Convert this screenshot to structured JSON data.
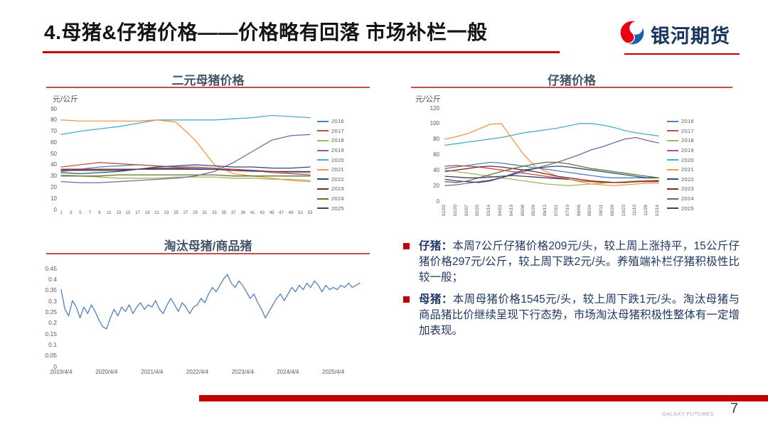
{
  "page": {
    "background": "#ffffff",
    "accent_red": "#c00000",
    "navy_text": "#203864",
    "chart_title_color": "#44546a"
  },
  "header": {
    "title": "4.母猪&仔猪价格——价格略有回落 市场补栏一般",
    "logo": {
      "text": "银河期货",
      "icon": "galaxy-swirl-icon",
      "icon_red": "#e60012",
      "icon_blue": "#1b5eab"
    }
  },
  "chart_data": [
    {
      "type": "line",
      "title": "二元母猪价格",
      "unit": "元/公斤",
      "ylim": [
        0,
        90
      ],
      "yticks": [
        "0",
        "10",
        "20",
        "30",
        "40",
        "50",
        "60",
        "70",
        "80",
        "90"
      ],
      "xticks": [
        "1",
        "3",
        "5",
        "7",
        "9",
        "11",
        "13",
        "15",
        "17",
        "19",
        "21",
        "23",
        "25",
        "27",
        "29",
        "31",
        "33",
        "35",
        "37",
        "39",
        "41",
        "43",
        "45",
        "47",
        "49",
        "51",
        "53"
      ],
      "series_x_weeks": [
        1,
        5,
        9,
        13,
        17,
        21,
        25,
        29,
        33,
        37,
        41,
        45,
        49,
        53
      ],
      "legend_position": "right",
      "series": [
        {
          "name": "2016",
          "color": "#4F81BD",
          "values": [
            34,
            36,
            38,
            39,
            40,
            39,
            38,
            37,
            36,
            35,
            34,
            34,
            33,
            33
          ]
        },
        {
          "name": "2017",
          "color": "#C0504D",
          "values": [
            38,
            40,
            42,
            41,
            40,
            39,
            38,
            38,
            37,
            36,
            35,
            33,
            32,
            31
          ]
        },
        {
          "name": "2018",
          "color": "#9BBB59",
          "values": [
            31,
            30,
            29,
            28,
            28,
            28,
            29,
            29,
            29,
            28,
            28,
            27,
            27,
            26
          ]
        },
        {
          "name": "2019",
          "color": "#8064A2",
          "values": [
            25,
            24,
            24,
            25,
            26,
            27,
            28,
            30,
            34,
            42,
            52,
            62,
            66,
            67
          ]
        },
        {
          "name": "2020",
          "color": "#4BACC6",
          "values": [
            67,
            70,
            72,
            74,
            77,
            80,
            80,
            80,
            80,
            81,
            82,
            84,
            83,
            82
          ]
        },
        {
          "name": "2021",
          "color": "#F79646",
          "values": [
            80,
            79,
            79,
            79,
            79,
            80,
            78,
            62,
            40,
            32,
            30,
            28,
            26,
            25
          ]
        },
        {
          "name": "2022",
          "color": "#2C4D75",
          "values": [
            33,
            32,
            33,
            34,
            36,
            38,
            39,
            40,
            39,
            38,
            38,
            37,
            37,
            38
          ]
        },
        {
          "name": "2023",
          "color": "#772C2A",
          "values": [
            36,
            36,
            36,
            36,
            36,
            37,
            37,
            36,
            36,
            35,
            35,
            34,
            34,
            34
          ]
        },
        {
          "name": "2024",
          "color": "#5F7530",
          "values": [
            30,
            30,
            30,
            31,
            31,
            31,
            31,
            31,
            31,
            30,
            30,
            30,
            30,
            30
          ]
        },
        {
          "name": "2025",
          "color": "#4D3B62",
          "values": [
            35,
            35,
            35,
            35,
            36,
            36,
            36,
            36,
            36,
            35,
            null,
            null,
            null,
            null
          ]
        }
      ]
    },
    {
      "type": "line",
      "title": "仔猪价格",
      "unit": "元/公斤",
      "ylim": [
        0,
        120
      ],
      "yticks": [
        "0",
        "20",
        "40",
        "60",
        "80",
        "100",
        "120"
      ],
      "xticks": [
        "01/02",
        "01/20",
        "02/07",
        "02/25",
        "03/14",
        "04/01",
        "04/19",
        "05/08",
        "05/26",
        "06/13",
        "07/01",
        "07/19",
        "08/06",
        "08/24",
        "09/11",
        "09/29",
        "10/23",
        "11/10",
        "11/28",
        "12/16"
      ],
      "rotate_xticks": true,
      "legend_position": "right",
      "series": [
        {
          "name": "2016",
          "color": "#4F81BD",
          "values": [
            42,
            44,
            46,
            48,
            50,
            49,
            47,
            45,
            43,
            41,
            39,
            37,
            35,
            33,
            31,
            30,
            30,
            30,
            30,
            30
          ]
        },
        {
          "name": "2017",
          "color": "#C0504D",
          "values": [
            45,
            46,
            45,
            44,
            42,
            40,
            38,
            36,
            34,
            32,
            30,
            28,
            26,
            25,
            24,
            24,
            24,
            25,
            25,
            25
          ]
        },
        {
          "name": "2018",
          "color": "#9BBB59",
          "values": [
            40,
            38,
            36,
            34,
            32,
            30,
            28,
            26,
            24,
            22,
            21,
            20,
            21,
            22,
            23,
            24,
            25,
            26,
            26,
            27
          ]
        },
        {
          "name": "2019",
          "color": "#8064A2",
          "values": [
            20,
            21,
            23,
            25,
            27,
            30,
            34,
            38,
            42,
            46,
            50,
            55,
            60,
            66,
            70,
            75,
            80,
            82,
            78,
            75
          ]
        },
        {
          "name": "2020",
          "color": "#4BACC6",
          "values": [
            72,
            74,
            76,
            78,
            80,
            82,
            85,
            88,
            90,
            92,
            94,
            97,
            100,
            100,
            98,
            95,
            91,
            88,
            86,
            84
          ]
        },
        {
          "name": "2021",
          "color": "#F79646",
          "values": [
            80,
            83,
            87,
            93,
            99,
            100,
            80,
            60,
            45,
            38,
            32,
            28,
            25,
            22,
            21,
            20,
            21,
            22,
            23,
            23
          ]
        },
        {
          "name": "2022",
          "color": "#2C4D75",
          "values": [
            28,
            26,
            25,
            24,
            26,
            30,
            35,
            40,
            42,
            44,
            45,
            44,
            42,
            40,
            38,
            36,
            34,
            32,
            30,
            30
          ]
        },
        {
          "name": "2023",
          "color": "#772C2A",
          "values": [
            38,
            40,
            42,
            44,
            45,
            44,
            42,
            40,
            38,
            35,
            32,
            30,
            28,
            26,
            25,
            24,
            24,
            25,
            26,
            26
          ]
        },
        {
          "name": "2024",
          "color": "#5F7530",
          "values": [
            25,
            24,
            26,
            30,
            34,
            38,
            42,
            45,
            48,
            50,
            50,
            48,
            45,
            42,
            40,
            38,
            36,
            34,
            32,
            30
          ]
        },
        {
          "name": "2025",
          "color": "#4D3B62",
          "values": [
            32,
            31,
            30,
            30,
            31,
            32,
            33,
            32,
            31,
            30,
            29,
            28,
            null,
            null,
            null,
            null,
            null,
            null,
            null,
            null
          ]
        }
      ]
    },
    {
      "type": "line",
      "title": "淘汰母猪/商品猪",
      "ylim": [
        0,
        0.45
      ],
      "yticks": [
        "0",
        "0.05",
        "0.1",
        "0.15",
        "0.2",
        "0.25",
        "0.3",
        "0.35",
        "0.4",
        "0.45"
      ],
      "xticks": [
        "2019/4/4",
        "2020/4/4",
        "2021/4/4",
        "2022/4/4",
        "2023/4/4",
        "2024/4/4",
        "2025/4/4"
      ],
      "xtick_positions": [
        0,
        0.152,
        0.304,
        0.456,
        0.608,
        0.759,
        0.911
      ],
      "series": [
        {
          "name": "淘汰母猪/商品猪",
          "color": "#4F81BD",
          "values": [
            0.35,
            0.26,
            0.23,
            0.3,
            0.27,
            0.22,
            0.27,
            0.24,
            0.28,
            0.25,
            0.21,
            0.18,
            0.17,
            0.22,
            0.26,
            0.23,
            0.27,
            0.25,
            0.28,
            0.24,
            0.27,
            0.29,
            0.26,
            0.28,
            0.27,
            0.3,
            0.26,
            0.24,
            0.28,
            0.31,
            0.28,
            0.25,
            0.29,
            0.27,
            0.24,
            0.27,
            0.28,
            0.31,
            0.29,
            0.33,
            0.36,
            0.34,
            0.37,
            0.4,
            0.42,
            0.38,
            0.36,
            0.39,
            0.37,
            0.34,
            0.31,
            0.33,
            0.29,
            0.26,
            0.22,
            0.25,
            0.28,
            0.31,
            0.33,
            0.3,
            0.33,
            0.36,
            0.34,
            0.37,
            0.35,
            0.38,
            0.36,
            0.39,
            0.37,
            0.34,
            0.37,
            0.35,
            0.36,
            0.35,
            0.37,
            0.36,
            0.38,
            0.36,
            0.37,
            0.38
          ]
        }
      ]
    }
  ],
  "notes": {
    "items": [
      {
        "label": "仔猪：",
        "text": "本周7公斤仔猪价格209元/头，较上周上涨持平，15公斤仔猪价格297元/公斤，较上周下跌2元/头。养殖端补栏仔猪积极性比较一般；"
      },
      {
        "label": "母猪：",
        "text": "本周母猪价格1545元/头，较上周下跌1元/头。淘汰母猪与商品猪比价继续呈现下行态势，市场淘汰母猪积极性整体有一定增加表现。"
      }
    ]
  },
  "footer": {
    "brand": "GALAXY FUTURES",
    "page": "7"
  }
}
